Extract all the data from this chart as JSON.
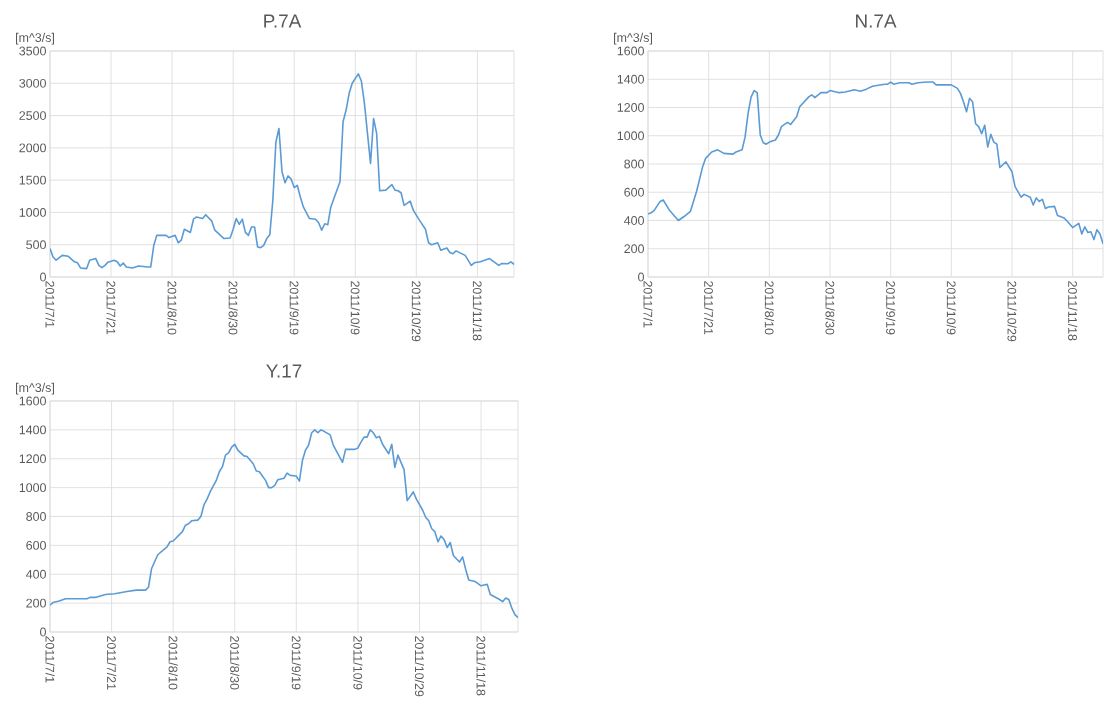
{
  "chart_data": [
    {
      "type": "line",
      "title": "P.7A",
      "ylabel": "[m^3/s]",
      "color": "#5b9bd5",
      "grid": true,
      "xlim": [
        "2011-07-01",
        "2011-11-30"
      ],
      "ylim": [
        0,
        3500
      ],
      "yticks": [
        0,
        500,
        1000,
        1500,
        2000,
        2500,
        3000,
        3500
      ],
      "xticks": [
        {
          "value": "2011-07-01",
          "label": "2011/7/1"
        },
        {
          "value": "2011-07-21",
          "label": "2011/7/21"
        },
        {
          "value": "2011-08-10",
          "label": "2011/8/10"
        },
        {
          "value": "2011-08-30",
          "label": "2011/8/30"
        },
        {
          "value": "2011-09-19",
          "label": "2011/9/19"
        },
        {
          "value": "2011-10-09",
          "label": "2011/10/9"
        },
        {
          "value": "2011-10-29",
          "label": "2011/10/29"
        },
        {
          "value": "2011-11-18",
          "label": "2011/11/18"
        }
      ],
      "x": [
        "2011-07-01",
        "2011-07-02",
        "2011-07-03",
        "2011-07-05",
        "2011-07-07",
        "2011-07-09",
        "2011-07-10",
        "2011-07-11",
        "2011-07-13",
        "2011-07-14",
        "2011-07-16",
        "2011-07-17",
        "2011-07-18",
        "2011-07-19",
        "2011-07-20",
        "2011-07-22",
        "2011-07-23",
        "2011-07-24",
        "2011-07-25",
        "2011-07-26",
        "2011-07-28",
        "2011-07-30",
        "2011-08-02",
        "2011-08-03",
        "2011-08-04",
        "2011-08-05",
        "2011-08-08",
        "2011-08-09",
        "2011-08-11",
        "2011-08-12",
        "2011-08-13",
        "2011-08-14",
        "2011-08-16",
        "2011-08-17",
        "2011-08-18",
        "2011-08-20",
        "2011-08-21",
        "2011-08-23",
        "2011-08-24",
        "2011-08-27",
        "2011-08-29",
        "2011-08-30",
        "2011-08-31",
        "2011-09-01",
        "2011-09-02",
        "2011-09-03",
        "2011-09-04",
        "2011-09-05",
        "2011-09-06",
        "2011-09-07",
        "2011-09-08",
        "2011-09-09",
        "2011-09-10",
        "2011-09-11",
        "2011-09-12",
        "2011-09-13",
        "2011-09-14",
        "2011-09-15",
        "2011-09-16",
        "2011-09-17",
        "2011-09-18",
        "2011-09-19",
        "2011-09-20",
        "2011-09-21",
        "2011-09-22",
        "2011-09-24",
        "2011-09-26",
        "2011-09-27",
        "2011-09-28",
        "2011-09-29",
        "2011-09-30",
        "2011-10-01",
        "2011-10-02",
        "2011-10-04",
        "2011-10-05",
        "2011-10-06",
        "2011-10-07",
        "2011-10-08",
        "2011-10-10",
        "2011-10-11",
        "2011-10-12",
        "2011-10-14",
        "2011-10-15",
        "2011-10-16",
        "2011-10-17",
        "2011-10-19",
        "2011-10-21",
        "2011-10-22",
        "2011-10-23",
        "2011-10-24",
        "2011-10-25",
        "2011-10-27",
        "2011-10-28",
        "2011-10-30",
        "2011-11-01",
        "2011-11-02",
        "2011-11-03",
        "2011-11-05",
        "2011-11-06",
        "2011-11-08",
        "2011-11-09",
        "2011-11-10",
        "2011-11-11",
        "2011-11-14",
        "2011-11-16",
        "2011-11-17",
        "2011-11-19",
        "2011-11-22",
        "2011-11-25",
        "2011-11-26",
        "2011-11-28",
        "2011-11-29",
        "2011-11-30"
      ],
      "values": [
        440,
        310,
        260,
        335,
        320,
        235,
        220,
        140,
        130,
        260,
        285,
        180,
        145,
        180,
        230,
        260,
        235,
        170,
        215,
        155,
        140,
        170,
        155,
        155,
        490,
        645,
        645,
        610,
        645,
        530,
        570,
        740,
        690,
        895,
        930,
        905,
        965,
        865,
        725,
        595,
        605,
        740,
        905,
        815,
        895,
        690,
        645,
        775,
        775,
        465,
        455,
        490,
        595,
        655,
        1190,
        2090,
        2300,
        1630,
        1460,
        1565,
        1515,
        1385,
        1420,
        1240,
        1085,
        905,
        895,
        840,
        725,
        825,
        810,
        1085,
        1215,
        1475,
        2405,
        2585,
        2845,
        3000,
        3145,
        3035,
        2690,
        1760,
        2455,
        2225,
        1335,
        1345,
        1430,
        1345,
        1335,
        1305,
        1110,
        1175,
        1035,
        880,
        740,
        530,
        500,
        530,
        415,
        450,
        380,
        360,
        405,
        335,
        180,
        220,
        235,
        285,
        180,
        210,
        205,
        235,
        195
      ]
    },
    {
      "type": "line",
      "title": "N.7A",
      "ylabel": "[m^3/s]",
      "color": "#5b9bd5",
      "grid": true,
      "xlim": [
        "2011-07-01",
        "2011-11-28"
      ],
      "ylim": [
        0,
        1600
      ],
      "yticks": [
        0,
        200,
        400,
        600,
        800,
        1000,
        1200,
        1400,
        1600
      ],
      "xticks": [
        {
          "value": "2011-07-01",
          "label": "2011/7/1"
        },
        {
          "value": "2011-07-21",
          "label": "2011/7/21"
        },
        {
          "value": "2011-08-10",
          "label": "2011/8/10"
        },
        {
          "value": "2011-08-30",
          "label": "2011/8/30"
        },
        {
          "value": "2011-09-19",
          "label": "2011/9/19"
        },
        {
          "value": "2011-10-09",
          "label": "2011/10/9"
        },
        {
          "value": "2011-10-29",
          "label": "2011/10/29"
        },
        {
          "value": "2011-11-18",
          "label": "2011/11/18"
        }
      ],
      "x": [
        "2011-07-01",
        "2011-07-02",
        "2011-07-03",
        "2011-07-05",
        "2011-07-06",
        "2011-07-08",
        "2011-07-11",
        "2011-07-13",
        "2011-07-15",
        "2011-07-17",
        "2011-07-19",
        "2011-07-20",
        "2011-07-22",
        "2011-07-24",
        "2011-07-26",
        "2011-07-29",
        "2011-07-30",
        "2011-08-01",
        "2011-08-02",
        "2011-08-03",
        "2011-08-04",
        "2011-08-05",
        "2011-08-06",
        "2011-08-07",
        "2011-08-08",
        "2011-08-09",
        "2011-08-10",
        "2011-08-12",
        "2011-08-13",
        "2011-08-14",
        "2011-08-15",
        "2011-08-16",
        "2011-08-17",
        "2011-08-19",
        "2011-08-20",
        "2011-08-23",
        "2011-08-24",
        "2011-08-25",
        "2011-08-27",
        "2011-08-29",
        "2011-08-30",
        "2011-09-02",
        "2011-09-04",
        "2011-09-07",
        "2011-09-09",
        "2011-09-11",
        "2011-09-13",
        "2011-09-17",
        "2011-09-18",
        "2011-09-19",
        "2011-09-20",
        "2011-09-22",
        "2011-09-25",
        "2011-09-26",
        "2011-09-28",
        "2011-10-01",
        "2011-10-03",
        "2011-10-04",
        "2011-10-09",
        "2011-10-11",
        "2011-10-12",
        "2011-10-13",
        "2011-10-14",
        "2011-10-15",
        "2011-10-16",
        "2011-10-17",
        "2011-10-18",
        "2011-10-19",
        "2011-10-20",
        "2011-10-21",
        "2011-10-22",
        "2011-10-23",
        "2011-10-24",
        "2011-10-25",
        "2011-10-27",
        "2011-10-29",
        "2011-10-30",
        "2011-11-01",
        "2011-11-02",
        "2011-11-04",
        "2011-11-05",
        "2011-11-06",
        "2011-11-07",
        "2011-11-08",
        "2011-11-09",
        "2011-11-10",
        "2011-11-12",
        "2011-11-13",
        "2011-11-15",
        "2011-11-16",
        "2011-11-18",
        "2011-11-20",
        "2011-11-21",
        "2011-11-22",
        "2011-11-23",
        "2011-11-24",
        "2011-11-25",
        "2011-11-26",
        "2011-11-27",
        "2011-11-28"
      ],
      "values": [
        445,
        455,
        470,
        535,
        545,
        475,
        400,
        430,
        465,
        605,
        780,
        840,
        885,
        900,
        875,
        870,
        885,
        900,
        990,
        1160,
        1275,
        1320,
        1305,
        1005,
        950,
        940,
        955,
        970,
        1005,
        1065,
        1080,
        1095,
        1080,
        1135,
        1205,
        1275,
        1290,
        1270,
        1305,
        1305,
        1320,
        1305,
        1310,
        1325,
        1315,
        1330,
        1350,
        1365,
        1365,
        1380,
        1365,
        1375,
        1375,
        1365,
        1375,
        1380,
        1380,
        1360,
        1360,
        1335,
        1300,
        1240,
        1170,
        1265,
        1240,
        1085,
        1065,
        1015,
        1075,
        920,
        1010,
        955,
        940,
        775,
        815,
        745,
        640,
        565,
        585,
        565,
        510,
        560,
        535,
        550,
        485,
        495,
        500,
        435,
        420,
        400,
        350,
        380,
        305,
        355,
        315,
        320,
        265,
        335,
        305,
        235
      ]
    },
    {
      "type": "line",
      "title": "Y.17",
      "ylabel": "[m^3/s]",
      "color": "#5b9bd5",
      "grid": true,
      "xlim": [
        "2011-07-01",
        "2011-11-30"
      ],
      "ylim": [
        0,
        1600
      ],
      "yticks": [
        0,
        200,
        400,
        600,
        800,
        1000,
        1200,
        1400,
        1600
      ],
      "xticks": [
        {
          "value": "2011-07-01",
          "label": "2011/7/1"
        },
        {
          "value": "2011-07-21",
          "label": "2011/7/21"
        },
        {
          "value": "2011-08-10",
          "label": "2011/8/10"
        },
        {
          "value": "2011-08-30",
          "label": "2011/8/30"
        },
        {
          "value": "2011-09-19",
          "label": "2011/9/19"
        },
        {
          "value": "2011-10-09",
          "label": "2011/10/9"
        },
        {
          "value": "2011-10-29",
          "label": "2011/10/29"
        },
        {
          "value": "2011-11-18",
          "label": "2011/11/18"
        }
      ],
      "x": [
        "2011-07-01",
        "2011-07-02",
        "2011-07-04",
        "2011-07-06",
        "2011-07-13",
        "2011-07-14",
        "2011-07-16",
        "2011-07-19",
        "2011-07-22",
        "2011-07-26",
        "2011-07-29",
        "2011-08-01",
        "2011-08-02",
        "2011-08-03",
        "2011-08-05",
        "2011-08-08",
        "2011-08-09",
        "2011-08-10",
        "2011-08-13",
        "2011-08-14",
        "2011-08-15",
        "2011-08-16",
        "2011-08-18",
        "2011-08-19",
        "2011-08-20",
        "2011-08-21",
        "2011-08-22",
        "2011-08-24",
        "2011-08-25",
        "2011-08-26",
        "2011-08-27",
        "2011-08-28",
        "2011-08-29",
        "2011-08-30",
        "2011-08-31",
        "2011-09-02",
        "2011-09-03",
        "2011-09-05",
        "2011-09-06",
        "2011-09-07",
        "2011-09-09",
        "2011-09-10",
        "2011-09-11",
        "2011-09-12",
        "2011-09-13",
        "2011-09-15",
        "2011-09-16",
        "2011-09-17",
        "2011-09-19",
        "2011-09-20",
        "2011-09-21",
        "2011-09-22",
        "2011-09-23",
        "2011-09-24",
        "2011-09-25",
        "2011-09-26",
        "2011-09-27",
        "2011-09-28",
        "2011-09-30",
        "2011-10-01",
        "2011-10-04",
        "2011-10-05",
        "2011-10-08",
        "2011-10-09",
        "2011-10-10",
        "2011-10-11",
        "2011-10-12",
        "2011-10-13",
        "2011-10-14",
        "2011-10-15",
        "2011-10-16",
        "2011-10-17",
        "2011-10-19",
        "2011-10-20",
        "2011-10-21",
        "2011-10-22",
        "2011-10-24",
        "2011-10-25",
        "2011-10-27",
        "2011-10-28",
        "2011-10-30",
        "2011-10-31",
        "2011-11-01",
        "2011-11-02",
        "2011-11-03",
        "2011-11-04",
        "2011-11-05",
        "2011-11-06",
        "2011-11-07",
        "2011-11-08",
        "2011-11-09",
        "2011-11-11",
        "2011-11-12",
        "2011-11-13",
        "2011-11-14",
        "2011-11-16",
        "2011-11-18",
        "2011-11-19",
        "2011-11-20",
        "2011-11-21",
        "2011-11-24",
        "2011-11-25",
        "2011-11-26",
        "2011-11-27",
        "2011-11-28",
        "2011-11-29",
        "2011-11-30"
      ],
      "values": [
        185,
        205,
        215,
        230,
        230,
        240,
        240,
        260,
        265,
        280,
        290,
        290,
        310,
        440,
        535,
        590,
        625,
        630,
        695,
        740,
        750,
        770,
        775,
        800,
        880,
        920,
        970,
        1050,
        1110,
        1145,
        1225,
        1240,
        1280,
        1300,
        1260,
        1220,
        1215,
        1165,
        1115,
        1110,
        1050,
        1000,
        1000,
        1015,
        1055,
        1065,
        1100,
        1085,
        1080,
        1045,
        1190,
        1260,
        1295,
        1380,
        1400,
        1380,
        1400,
        1390,
        1365,
        1295,
        1175,
        1265,
        1265,
        1275,
        1315,
        1350,
        1350,
        1400,
        1380,
        1345,
        1355,
        1300,
        1235,
        1300,
        1140,
        1225,
        1125,
        910,
        970,
        920,
        845,
        795,
        770,
        715,
        695,
        625,
        665,
        640,
        585,
        620,
        530,
        485,
        520,
        435,
        360,
        350,
        320,
        325,
        330,
        260,
        225,
        210,
        235,
        225,
        165,
        120,
        100
      ]
    }
  ]
}
